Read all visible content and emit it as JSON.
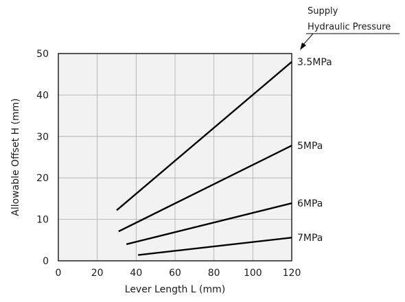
{
  "chart_data": {
    "type": "line",
    "title": "",
    "xlabel": "Lever Length L (mm)",
    "ylabel": "Allowable Offset H (mm)",
    "xlim": [
      0,
      120
    ],
    "ylim": [
      0,
      50
    ],
    "xticks": [
      0,
      20,
      40,
      60,
      80,
      100,
      120
    ],
    "yticks": [
      0,
      10,
      20,
      30,
      40,
      50
    ],
    "grid": true,
    "series": [
      {
        "name": "3.5MPa",
        "x": [
          30,
          120
        ],
        "y": [
          12.2,
          48.0
        ]
      },
      {
        "name": "5MPa",
        "x": [
          31,
          120
        ],
        "y": [
          7.1,
          27.8
        ]
      },
      {
        "name": "6MPa",
        "x": [
          35,
          120
        ],
        "y": [
          4.0,
          13.9
        ]
      },
      {
        "name": "7MPa",
        "x": [
          41,
          120
        ],
        "y": [
          1.4,
          5.6
        ]
      }
    ],
    "annotation": {
      "lines": [
        "Supply",
        "Hydraulic Pressure"
      ]
    },
    "colors": {
      "background": "#ffffff",
      "plot_fill": "#f2f2f2",
      "grid": "#aaaaaa",
      "line": "#000000",
      "frame": "#000000"
    }
  }
}
